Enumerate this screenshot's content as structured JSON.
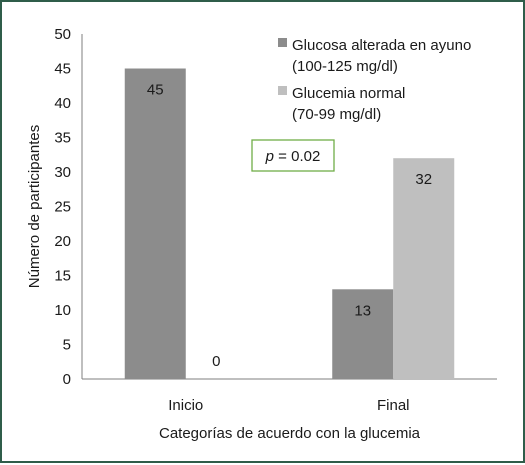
{
  "chart_data": {
    "type": "bar",
    "categories": [
      "Inicio",
      "Final"
    ],
    "series": [
      {
        "name": "Glucosa alterada en ayuno\n(100-125 mg/dl)",
        "name_lines": [
          "Glucosa alterada en ayuno",
          "(100-125 mg/dl)"
        ],
        "values": [
          45,
          13
        ],
        "color": "#8c8c8c"
      },
      {
        "name": "Glucemia normal\n(70-99 mg/dl)",
        "name_lines": [
          "Glucemia normal",
          "(70-99 mg/dl)"
        ],
        "values": [
          0,
          32
        ],
        "color": "#bfbfbf"
      }
    ],
    "xlabel": "Categorías de acuerdo con la glucemia",
    "ylabel": "Número de participantes",
    "ylim": [
      0,
      50
    ],
    "yticks": [
      0,
      5,
      10,
      15,
      20,
      25,
      30,
      35,
      40,
      45,
      50
    ],
    "grid": false,
    "legend": "top-right",
    "annotation": {
      "italic": "p",
      "rest": " = 0.02",
      "border_color": "#70ad47"
    }
  }
}
